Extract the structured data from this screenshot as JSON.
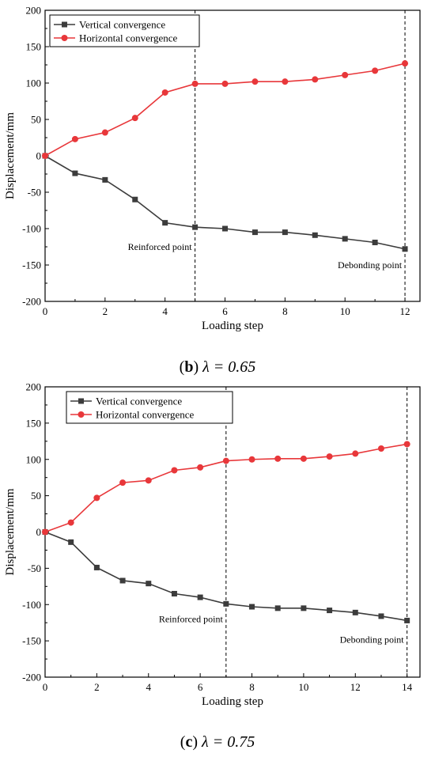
{
  "chart_data": [
    {
      "type": "line",
      "caption_letter": "b",
      "caption_text": " λ = 0.65",
      "xlabel": "Loading step",
      "ylabel": "Displacement/mm",
      "xlim": [
        0,
        12.5
      ],
      "ylim": [
        -200,
        200
      ],
      "xticks": [
        0,
        2,
        4,
        6,
        8,
        10,
        12
      ],
      "yticks": [
        200,
        150,
        100,
        50,
        0,
        -50,
        -100,
        -150,
        -200
      ],
      "legend_position": "top-left",
      "grid": false,
      "series": [
        {
          "name": "Vertical convergence",
          "marker": "square",
          "color": "#3c3c3c",
          "x": [
            0,
            1,
            2,
            3,
            4,
            5,
            6,
            7,
            8,
            9,
            10,
            11,
            12
          ],
          "values": [
            0,
            -24,
            -33,
            -60,
            -92,
            -98,
            -100,
            -105,
            -105,
            -109,
            -114,
            -119,
            -128
          ]
        },
        {
          "name": "Horizontal convergence",
          "marker": "circle",
          "color": "#e8373a",
          "x": [
            0,
            1,
            2,
            3,
            4,
            5,
            6,
            7,
            8,
            9,
            10,
            11,
            12
          ],
          "values": [
            0,
            23,
            32,
            52,
            87,
            99,
            99,
            102,
            102,
            105,
            111,
            117,
            127
          ]
        }
      ],
      "annotations": [
        {
          "text": "Reinforced point",
          "x": 5,
          "y": -125,
          "align": "end"
        },
        {
          "text": "Debonding point",
          "x": 12,
          "y": -150,
          "align": "end"
        }
      ],
      "vlines": [
        5,
        12
      ]
    },
    {
      "type": "line",
      "caption_letter": "c",
      "caption_text": " λ = 0.75",
      "xlabel": "Loading step",
      "ylabel": "Displacement/mm",
      "xlim": [
        0,
        14.5
      ],
      "ylim": [
        -200,
        200
      ],
      "xticks": [
        0,
        2,
        4,
        6,
        8,
        10,
        12,
        14
      ],
      "yticks": [
        200,
        150,
        100,
        50,
        0,
        -50,
        -100,
        -150,
        -200
      ],
      "legend_position": "top-left",
      "grid": false,
      "series": [
        {
          "name": "Vertical convergence",
          "marker": "square",
          "color": "#3c3c3c",
          "x": [
            0,
            1,
            2,
            3,
            4,
            5,
            6,
            7,
            8,
            9,
            10,
            11,
            12,
            13,
            14
          ],
          "values": [
            0,
            -14,
            -49,
            -67,
            -71,
            -85,
            -90,
            -99,
            -103,
            -105,
            -105,
            -108,
            -111,
            -116,
            -122
          ]
        },
        {
          "name": "Horizontal convergence",
          "marker": "circle",
          "color": "#e8373a",
          "x": [
            0,
            1,
            2,
            3,
            4,
            5,
            6,
            7,
            8,
            9,
            10,
            11,
            12,
            13,
            14
          ],
          "values": [
            0,
            13,
            47,
            68,
            71,
            85,
            89,
            98,
            100,
            101,
            101,
            104,
            108,
            115,
            121
          ]
        }
      ],
      "annotations": [
        {
          "text": "Reinforced point",
          "x": 7,
          "y": -120,
          "align": "end"
        },
        {
          "text": "Debonding point",
          "x": 14,
          "y": -148,
          "align": "end"
        }
      ],
      "vlines": [
        7,
        14
      ]
    }
  ]
}
